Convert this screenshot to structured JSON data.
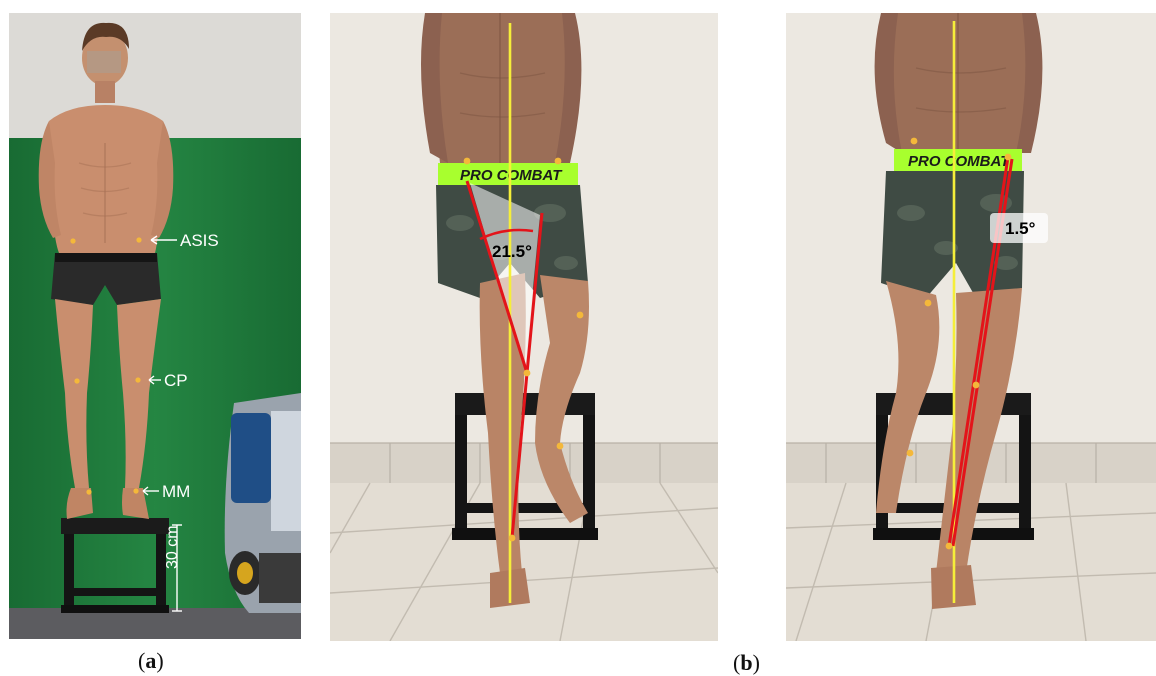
{
  "panel_a": {
    "caption_open": "(",
    "caption_letter": "a",
    "caption_close": ")",
    "labels": {
      "asis": "ASIS",
      "cp": "CP",
      "mm": "MM",
      "height": "30 cm"
    }
  },
  "panel_b": {
    "caption_open": "(",
    "caption_letter": "b",
    "caption_close": ")",
    "left_angle": "21.5°",
    "right_angle": "1.5°",
    "waistband_text": "PRO COMBAT"
  },
  "colors": {
    "green_screen": "#1f7a3c",
    "wall": "#e9e4dc",
    "floor": "#e2dbd2",
    "skin": "#c98e6e",
    "shorts": "#3b3a3a",
    "marker": "#f4b83a",
    "red_line": "#e3141a",
    "yellow_line": "#f5ee3a",
    "neon_green": "#a8ff2e"
  }
}
